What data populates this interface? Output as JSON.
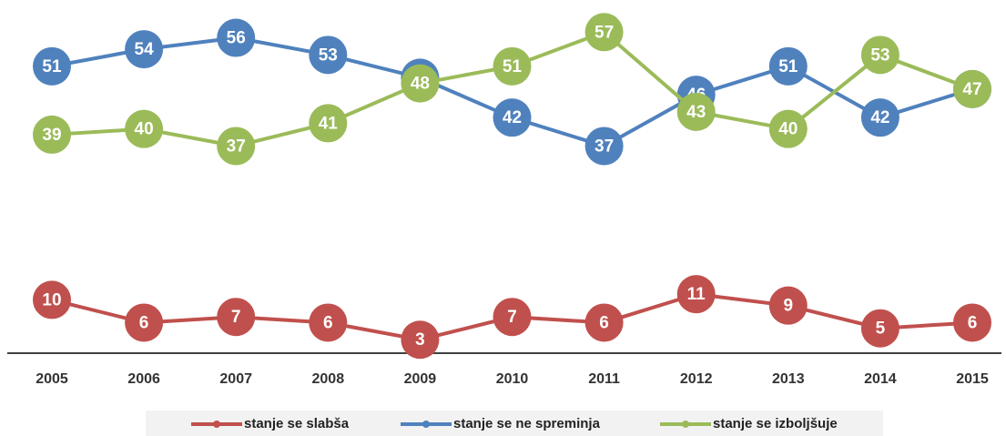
{
  "chart_data": {
    "type": "line",
    "x": [
      "2005",
      "2006",
      "2007",
      "2008",
      "2009",
      "2010",
      "2011",
      "2012",
      "2013",
      "2014",
      "2015"
    ],
    "series": [
      {
        "name": "stanje se slabša",
        "color": "#c0504d",
        "values": [
          10,
          6,
          7,
          6,
          3,
          7,
          6,
          11,
          9,
          5,
          6
        ]
      },
      {
        "name": "stanje se ne spreminja",
        "color": "#4f81bd",
        "values": [
          51,
          54,
          56,
          53,
          49,
          42,
          37,
          46,
          51,
          42,
          47
        ]
      },
      {
        "name": "stanje se izboljšuje",
        "color": "#9bbb59",
        "values": [
          39,
          40,
          37,
          41,
          48,
          51,
          57,
          43,
          40,
          53,
          47
        ]
      }
    ],
    "ylim": [
      0,
      62
    ],
    "legend": "bottom"
  }
}
